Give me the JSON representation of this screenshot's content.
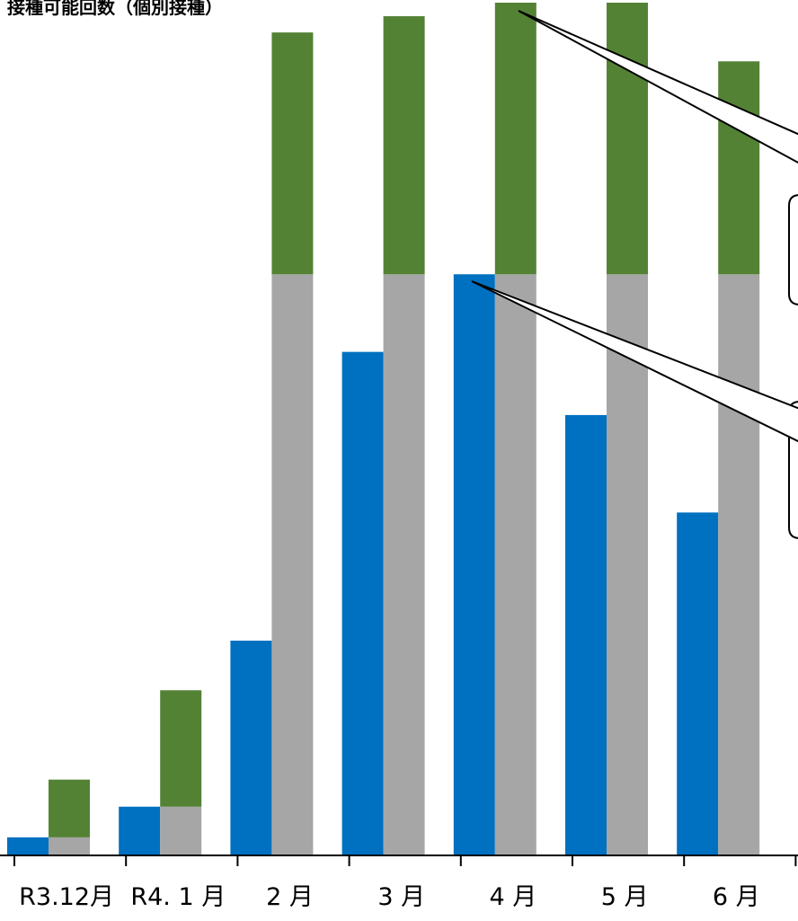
{
  "chart_data": {
    "type": "bar",
    "title": "接種可能回数（個別接種）",
    "xlabel": "",
    "ylabel": "",
    "categories": [
      "R3.12月",
      "R4. 1 月",
      "2 月",
      "3 月",
      "4 月",
      "5 月",
      "6 月"
    ],
    "ylim": [
      0,
      9.4
    ],
    "stacked_second_bar": true,
    "series": [
      {
        "color": "#0070c0",
        "values": [
          0.2,
          0.54,
          2.38,
          5.58,
          6.44,
          4.88,
          3.8
        ]
      },
      {
        "stack": "b",
        "color": "#a6a6a6",
        "values": [
          0.2,
          0.54,
          6.44,
          6.44,
          6.44,
          6.44,
          6.44
        ]
      },
      {
        "stack": "b",
        "color": "#548235",
        "values": [
          0.64,
          1.29,
          2.68,
          2.86,
          3.01,
          3.01,
          2.36
        ]
      }
    ],
    "grid": false,
    "legend": "none"
  }
}
